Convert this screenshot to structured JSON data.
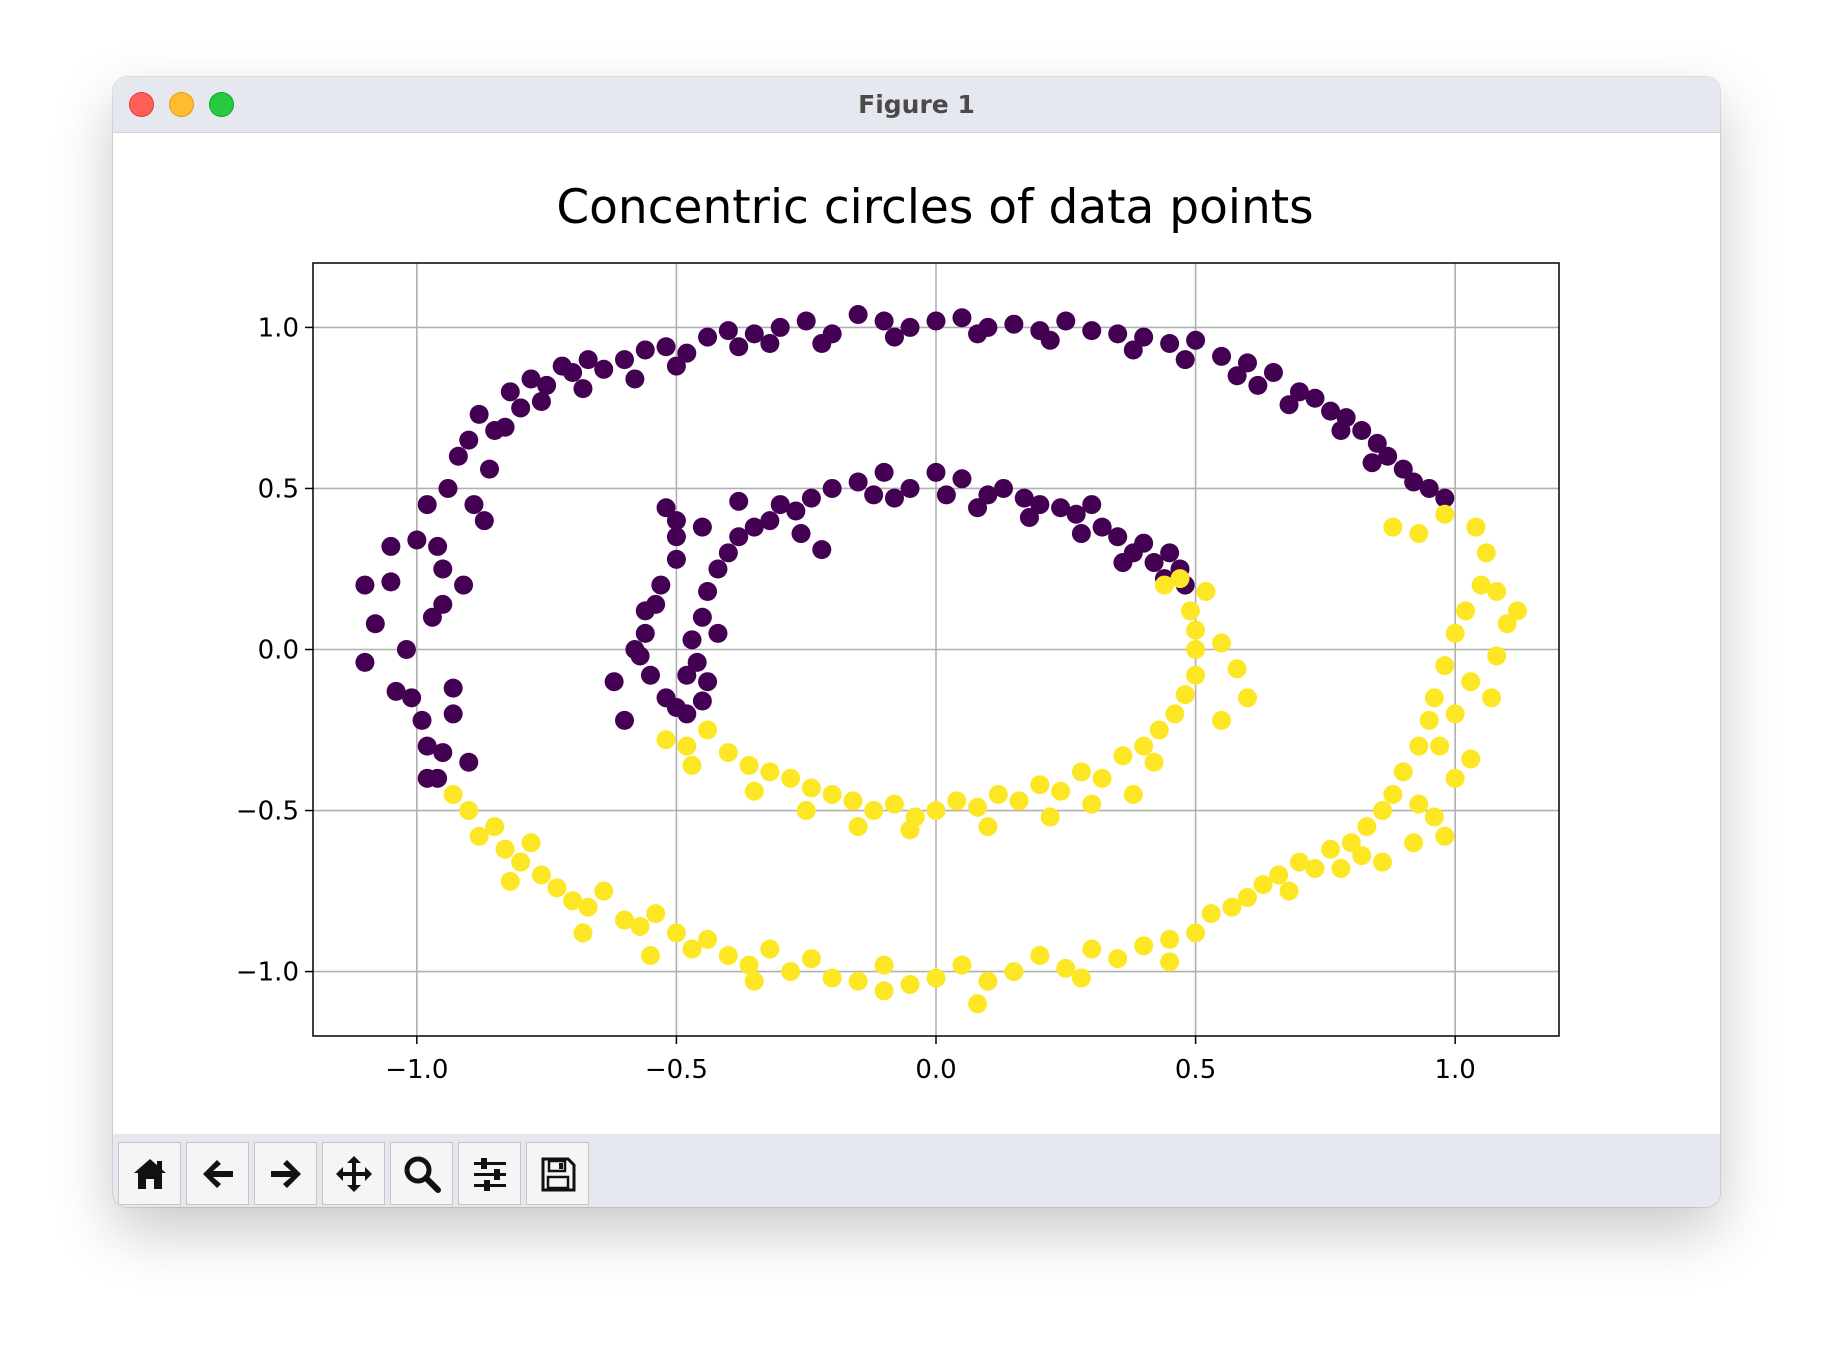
{
  "window": {
    "title": "Figure 1"
  },
  "toolbar": {
    "buttons": [
      {
        "icon": "home-icon",
        "action": "home"
      },
      {
        "icon": "arrow-left-icon",
        "action": "back"
      },
      {
        "icon": "arrow-right-icon",
        "action": "forward"
      },
      {
        "icon": "move-icon",
        "action": "pan"
      },
      {
        "icon": "magnifier-icon",
        "action": "zoom"
      },
      {
        "icon": "sliders-icon",
        "action": "configure-subplots"
      },
      {
        "icon": "save-icon",
        "action": "save"
      }
    ]
  },
  "chart_data": {
    "type": "scatter",
    "title": "Concentric circles of data points",
    "xlabel": "",
    "ylabel": "",
    "xlim": [
      -1.2,
      1.2
    ],
    "ylim": [
      -1.2,
      1.2
    ],
    "xticks": [
      "−1.0",
      "−0.5",
      "0.0",
      "0.5",
      "1.0"
    ],
    "yticks": [
      "−1.0",
      "−0.5",
      "0.0",
      "0.5",
      "1.0"
    ],
    "xtick_values": [
      -1.0,
      -0.5,
      0.0,
      0.5,
      1.0
    ],
    "ytick_values": [
      -1.0,
      -0.5,
      0.0,
      0.5,
      1.0
    ],
    "grid": true,
    "series": [
      {
        "color": "#440154",
        "points": [
          [
            -1.1,
            0.2
          ],
          [
            -1.08,
            0.08
          ],
          [
            -1.1,
            -0.04
          ],
          [
            -1.05,
            0.32
          ],
          [
            -1.05,
            0.21
          ],
          [
            -1.02,
            0.0
          ],
          [
            -1.01,
            -0.15
          ],
          [
            -1.0,
            0.34
          ],
          [
            -0.98,
            0.45
          ],
          [
            -0.97,
            0.1
          ],
          [
            -0.98,
            -0.3
          ],
          [
            -0.96,
            -0.4
          ],
          [
            -0.94,
            0.5
          ],
          [
            -0.92,
            0.6
          ],
          [
            -0.93,
            -0.12
          ],
          [
            -0.95,
            0.25
          ],
          [
            -0.9,
            0.65
          ],
          [
            -0.88,
            0.73
          ],
          [
            -0.85,
            0.68
          ],
          [
            -0.87,
            0.4
          ],
          [
            -0.82,
            0.8
          ],
          [
            -0.8,
            0.75
          ],
          [
            -0.78,
            0.84
          ],
          [
            -0.75,
            0.82
          ],
          [
            -0.72,
            0.88
          ],
          [
            -0.7,
            0.86
          ],
          [
            -0.67,
            0.9
          ],
          [
            -0.64,
            0.87
          ],
          [
            -0.6,
            0.9
          ],
          [
            -0.56,
            0.93
          ],
          [
            -0.52,
            0.94
          ],
          [
            -0.48,
            0.92
          ],
          [
            -0.44,
            0.97
          ],
          [
            -0.4,
            0.99
          ],
          [
            -0.35,
            0.98
          ],
          [
            -0.32,
            0.95
          ],
          [
            -0.3,
            1.0
          ],
          [
            -0.25,
            1.02
          ],
          [
            -0.2,
            0.98
          ],
          [
            -0.15,
            1.04
          ],
          [
            -0.1,
            1.02
          ],
          [
            -0.05,
            1.0
          ],
          [
            0.0,
            1.02
          ],
          [
            0.05,
            1.03
          ],
          [
            0.1,
            1.0
          ],
          [
            0.15,
            1.01
          ],
          [
            0.2,
            0.99
          ],
          [
            0.25,
            1.02
          ],
          [
            0.3,
            0.99
          ],
          [
            0.35,
            0.98
          ],
          [
            0.4,
            0.97
          ],
          [
            0.45,
            0.95
          ],
          [
            0.5,
            0.96
          ],
          [
            0.55,
            0.91
          ],
          [
            0.6,
            0.89
          ],
          [
            0.62,
            0.82
          ],
          [
            0.65,
            0.86
          ],
          [
            0.7,
            0.8
          ],
          [
            0.73,
            0.78
          ],
          [
            0.76,
            0.74
          ],
          [
            0.79,
            0.72
          ],
          [
            0.82,
            0.68
          ],
          [
            0.85,
            0.64
          ],
          [
            0.87,
            0.6
          ],
          [
            0.9,
            0.56
          ],
          [
            0.92,
            0.52
          ],
          [
            0.95,
            0.5
          ],
          [
            0.98,
            0.47
          ],
          [
            -1.04,
            -0.13
          ],
          [
            -0.99,
            -0.22
          ],
          [
            -0.95,
            -0.32
          ],
          [
            -0.98,
            -0.4
          ],
          [
            -0.9,
            -0.35
          ],
          [
            -0.93,
            -0.2
          ],
          [
            -0.95,
            0.14
          ],
          [
            -0.96,
            0.32
          ],
          [
            -0.91,
            0.2
          ],
          [
            -0.89,
            0.45
          ],
          [
            -0.86,
            0.56
          ],
          [
            -0.83,
            0.69
          ],
          [
            -0.76,
            0.77
          ],
          [
            -0.68,
            0.81
          ],
          [
            -0.58,
            0.84
          ],
          [
            -0.5,
            0.88
          ],
          [
            -0.38,
            0.94
          ],
          [
            -0.22,
            0.95
          ],
          [
            -0.08,
            0.97
          ],
          [
            0.08,
            0.98
          ],
          [
            0.22,
            0.96
          ],
          [
            0.38,
            0.93
          ],
          [
            0.48,
            0.9
          ],
          [
            0.58,
            0.85
          ],
          [
            0.68,
            0.76
          ],
          [
            0.78,
            0.68
          ],
          [
            0.84,
            0.58
          ],
          [
            -0.52,
            0.44
          ],
          [
            -0.5,
            0.4
          ],
          [
            -0.5,
            0.35
          ],
          [
            -0.5,
            0.28
          ],
          [
            -0.53,
            0.2
          ],
          [
            -0.56,
            0.12
          ],
          [
            -0.56,
            0.05
          ],
          [
            -0.57,
            -0.02
          ],
          [
            -0.55,
            -0.08
          ],
          [
            -0.52,
            -0.15
          ],
          [
            -0.5,
            -0.18
          ],
          [
            -0.48,
            -0.2
          ],
          [
            -0.45,
            -0.16
          ],
          [
            -0.44,
            -0.1
          ],
          [
            -0.46,
            -0.04
          ],
          [
            -0.47,
            0.03
          ],
          [
            -0.45,
            0.1
          ],
          [
            -0.44,
            0.18
          ],
          [
            -0.42,
            0.25
          ],
          [
            -0.4,
            0.3
          ],
          [
            -0.38,
            0.35
          ],
          [
            -0.35,
            0.38
          ],
          [
            -0.32,
            0.4
          ],
          [
            -0.3,
            0.45
          ],
          [
            -0.27,
            0.43
          ],
          [
            -0.24,
            0.47
          ],
          [
            -0.2,
            0.5
          ],
          [
            -0.15,
            0.52
          ],
          [
            -0.12,
            0.48
          ],
          [
            -0.1,
            0.55
          ],
          [
            -0.05,
            0.5
          ],
          [
            0.0,
            0.55
          ],
          [
            0.02,
            0.48
          ],
          [
            0.05,
            0.53
          ],
          [
            0.1,
            0.48
          ],
          [
            0.13,
            0.5
          ],
          [
            0.17,
            0.47
          ],
          [
            0.2,
            0.45
          ],
          [
            0.24,
            0.44
          ],
          [
            0.27,
            0.42
          ],
          [
            0.3,
            0.45
          ],
          [
            0.32,
            0.38
          ],
          [
            0.35,
            0.35
          ],
          [
            0.38,
            0.3
          ],
          [
            0.4,
            0.33
          ],
          [
            0.42,
            0.27
          ],
          [
            0.45,
            0.3
          ],
          [
            0.47,
            0.25
          ],
          [
            0.48,
            0.2
          ],
          [
            -0.62,
            -0.1
          ],
          [
            -0.6,
            -0.22
          ],
          [
            -0.38,
            0.46
          ],
          [
            -0.45,
            0.38
          ],
          [
            -0.58,
            0.0
          ],
          [
            -0.54,
            0.14
          ],
          [
            -0.48,
            -0.08
          ],
          [
            -0.42,
            0.05
          ],
          [
            0.28,
            0.36
          ],
          [
            0.36,
            0.27
          ],
          [
            0.44,
            0.22
          ],
          [
            -0.26,
            0.36
          ],
          [
            -0.22,
            0.31
          ],
          [
            -0.08,
            0.47
          ],
          [
            0.08,
            0.44
          ],
          [
            0.18,
            0.41
          ]
        ]
      },
      {
        "color": "#fde725",
        "points": [
          [
            -0.93,
            -0.45
          ],
          [
            -0.9,
            -0.5
          ],
          [
            -0.88,
            -0.58
          ],
          [
            -0.85,
            -0.55
          ],
          [
            -0.83,
            -0.62
          ],
          [
            -0.8,
            -0.66
          ],
          [
            -0.78,
            -0.6
          ],
          [
            -0.76,
            -0.7
          ],
          [
            -0.73,
            -0.74
          ],
          [
            -0.7,
            -0.78
          ],
          [
            -0.67,
            -0.8
          ],
          [
            -0.64,
            -0.75
          ],
          [
            -0.6,
            -0.84
          ],
          [
            -0.57,
            -0.86
          ],
          [
            -0.54,
            -0.82
          ],
          [
            -0.5,
            -0.88
          ],
          [
            -0.47,
            -0.93
          ],
          [
            -0.44,
            -0.9
          ],
          [
            -0.4,
            -0.95
          ],
          [
            -0.36,
            -0.98
          ],
          [
            -0.32,
            -0.93
          ],
          [
            -0.28,
            -1.0
          ],
          [
            -0.24,
            -0.96
          ],
          [
            -0.2,
            -1.02
          ],
          [
            -0.15,
            -1.03
          ],
          [
            -0.1,
            -0.98
          ],
          [
            -0.05,
            -1.04
          ],
          [
            0.0,
            -1.02
          ],
          [
            0.05,
            -0.98
          ],
          [
            0.1,
            -1.03
          ],
          [
            0.15,
            -1.0
          ],
          [
            0.2,
            -0.95
          ],
          [
            0.25,
            -0.99
          ],
          [
            0.3,
            -0.93
          ],
          [
            0.35,
            -0.96
          ],
          [
            0.4,
            -0.92
          ],
          [
            0.45,
            -0.9
          ],
          [
            0.5,
            -0.88
          ],
          [
            0.53,
            -0.82
          ],
          [
            0.57,
            -0.8
          ],
          [
            0.6,
            -0.77
          ],
          [
            0.63,
            -0.73
          ],
          [
            0.66,
            -0.7
          ],
          [
            0.7,
            -0.66
          ],
          [
            0.73,
            -0.68
          ],
          [
            0.76,
            -0.62
          ],
          [
            0.8,
            -0.6
          ],
          [
            0.83,
            -0.55
          ],
          [
            0.86,
            -0.5
          ],
          [
            0.88,
            -0.45
          ],
          [
            0.9,
            -0.38
          ],
          [
            0.93,
            -0.3
          ],
          [
            0.95,
            -0.22
          ],
          [
            0.96,
            -0.15
          ],
          [
            0.98,
            -0.05
          ],
          [
            1.0,
            0.05
          ],
          [
            1.02,
            0.12
          ],
          [
            1.05,
            0.2
          ],
          [
            1.06,
            0.3
          ],
          [
            1.04,
            0.38
          ],
          [
            0.98,
            0.42
          ],
          [
            0.93,
            0.36
          ],
          [
            0.88,
            0.38
          ],
          [
            1.1,
            0.08
          ],
          [
            1.08,
            -0.02
          ],
          [
            1.03,
            -0.1
          ],
          [
            1.0,
            -0.2
          ],
          [
            0.97,
            -0.3
          ],
          [
            1.0,
            -0.4
          ],
          [
            0.96,
            -0.52
          ],
          [
            0.92,
            -0.6
          ],
          [
            0.86,
            -0.66
          ],
          [
            -0.48,
            -0.3
          ],
          [
            -0.44,
            -0.25
          ],
          [
            -0.4,
            -0.32
          ],
          [
            -0.36,
            -0.36
          ],
          [
            -0.32,
            -0.38
          ],
          [
            -0.28,
            -0.4
          ],
          [
            -0.24,
            -0.43
          ],
          [
            -0.2,
            -0.45
          ],
          [
            -0.16,
            -0.47
          ],
          [
            -0.12,
            -0.5
          ],
          [
            -0.08,
            -0.48
          ],
          [
            -0.04,
            -0.52
          ],
          [
            0.0,
            -0.5
          ],
          [
            0.04,
            -0.47
          ],
          [
            0.08,
            -0.49
          ],
          [
            0.12,
            -0.45
          ],
          [
            0.16,
            -0.47
          ],
          [
            0.2,
            -0.42
          ],
          [
            0.24,
            -0.44
          ],
          [
            0.28,
            -0.38
          ],
          [
            0.32,
            -0.4
          ],
          [
            0.36,
            -0.33
          ],
          [
            0.4,
            -0.3
          ],
          [
            0.43,
            -0.25
          ],
          [
            0.46,
            -0.2
          ],
          [
            0.48,
            -0.14
          ],
          [
            0.5,
            -0.08
          ],
          [
            0.5,
            0.0
          ],
          [
            0.5,
            0.06
          ],
          [
            0.49,
            0.12
          ],
          [
            0.52,
            0.18
          ],
          [
            0.47,
            0.22
          ],
          [
            0.44,
            0.2
          ],
          [
            0.55,
            0.02
          ],
          [
            0.58,
            -0.06
          ],
          [
            0.6,
            -0.15
          ],
          [
            0.55,
            -0.22
          ],
          [
            0.42,
            -0.35
          ],
          [
            0.38,
            -0.45
          ],
          [
            0.3,
            -0.48
          ],
          [
            0.22,
            -0.52
          ],
          [
            0.1,
            -0.55
          ],
          [
            -0.05,
            -0.56
          ],
          [
            -0.15,
            -0.55
          ],
          [
            -0.25,
            -0.5
          ],
          [
            -0.35,
            -0.44
          ],
          [
            -0.52,
            -0.28
          ],
          [
            -0.47,
            -0.36
          ],
          [
            -0.55,
            -0.95
          ],
          [
            -0.35,
            -1.03
          ],
          [
            -0.1,
            -1.06
          ],
          [
            0.08,
            -1.1
          ],
          [
            0.28,
            -1.02
          ],
          [
            0.45,
            -0.97
          ],
          [
            0.68,
            -0.75
          ],
          [
            0.78,
            -0.68
          ],
          [
            0.82,
            -0.64
          ],
          [
            -0.82,
            -0.72
          ],
          [
            -0.68,
            -0.88
          ],
          [
            0.93,
            -0.48
          ],
          [
            0.98,
            -0.58
          ],
          [
            1.03,
            -0.34
          ],
          [
            1.07,
            -0.15
          ],
          [
            1.12,
            0.12
          ],
          [
            1.08,
            0.18
          ]
        ]
      }
    ]
  }
}
